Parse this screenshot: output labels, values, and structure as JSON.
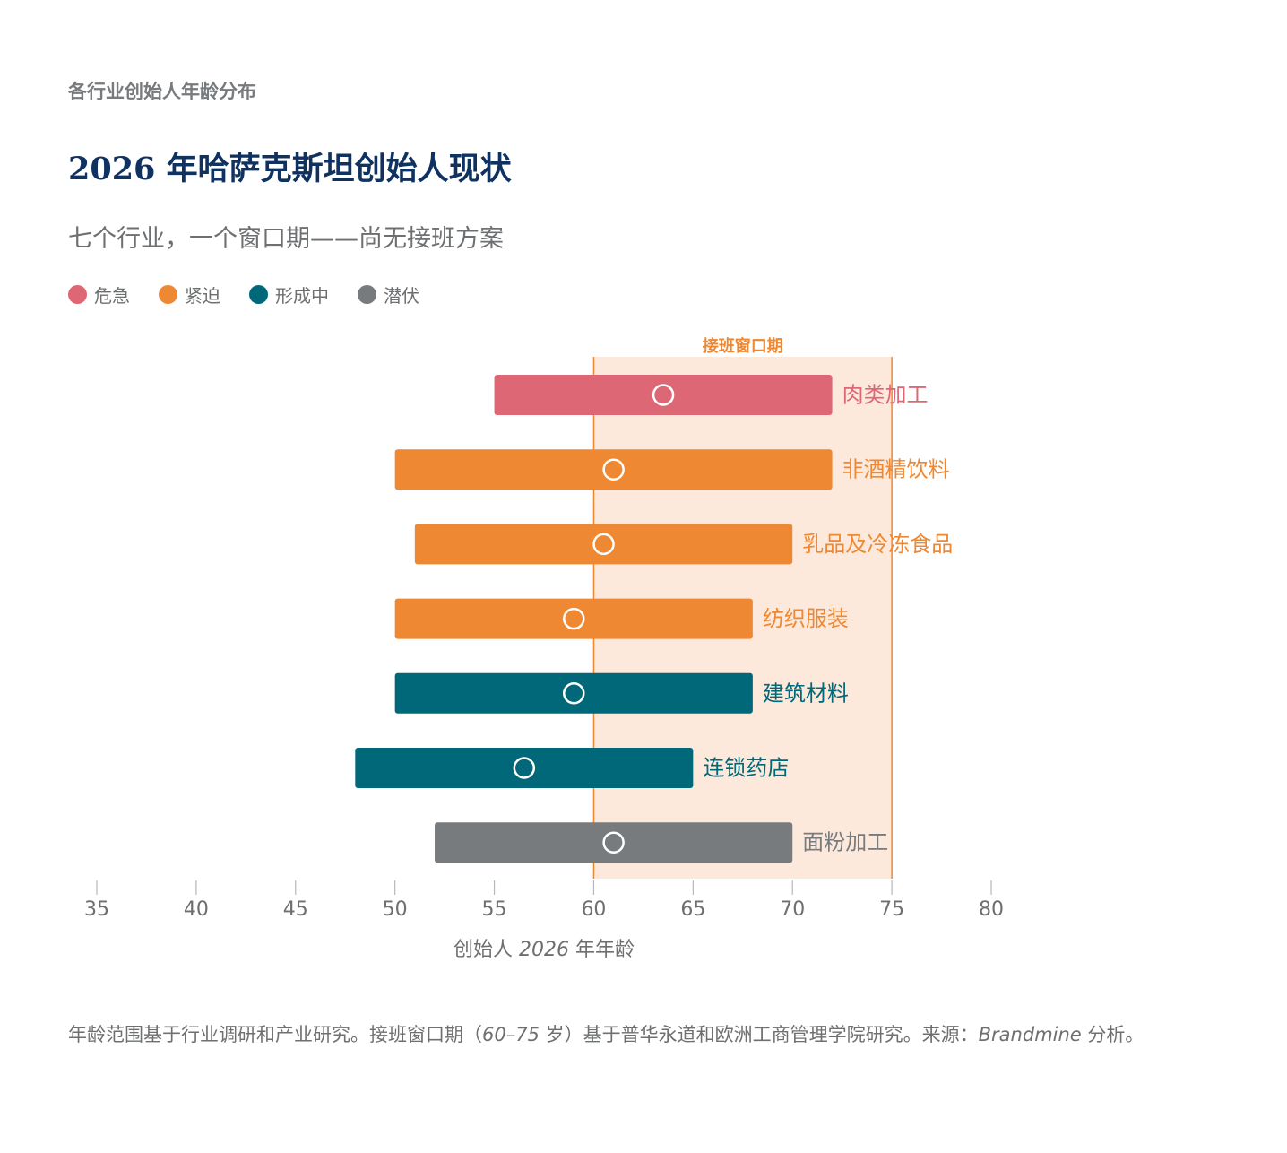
{
  "header": {
    "kicker": "各行业创始人年龄分布",
    "title": "2026 年哈萨克斯坦创始人现状",
    "subtitle": "七个行业，一个窗口期——尚无接班方案"
  },
  "legend": [
    {
      "label": "危急",
      "color": "#de6776"
    },
    {
      "label": "紧迫",
      "color": "#ee8832"
    },
    {
      "label": "形成中",
      "color": "#006878"
    },
    {
      "label": "潜伏",
      "color": "#777b7e"
    }
  ],
  "chart_data": {
    "type": "range-bar",
    "xlabel_prefix": "创始人",
    "xlabel_year": "2026",
    "xlabel_suffix": "年年龄",
    "xlim": [
      35,
      80
    ],
    "xticks": [
      35,
      40,
      45,
      50,
      55,
      60,
      65,
      70,
      75,
      80
    ],
    "window": {
      "label": "接班窗口期",
      "start": 60,
      "end": 75,
      "color": "#ee8832",
      "fill": "#fce9dc"
    },
    "series": [
      {
        "category": "肉类加工",
        "min": 55,
        "max": 72,
        "median": 63.5,
        "status": "危急",
        "color": "#de6776"
      },
      {
        "category": "非酒精饮料",
        "min": 50,
        "max": 72,
        "median": 61,
        "status": "紧迫",
        "color": "#ee8832"
      },
      {
        "category": "乳品及冷冻食品",
        "min": 51,
        "max": 70,
        "median": 60.5,
        "status": "紧迫",
        "color": "#ee8832"
      },
      {
        "category": "纺织服装",
        "min": 50,
        "max": 68,
        "median": 59,
        "status": "紧迫",
        "color": "#ee8832"
      },
      {
        "category": "建筑材料",
        "min": 50,
        "max": 68,
        "median": 59,
        "status": "形成中",
        "color": "#006878"
      },
      {
        "category": "连锁药店",
        "min": 48,
        "max": 65,
        "median": 56.5,
        "status": "形成中",
        "color": "#006878"
      },
      {
        "category": "面粉加工",
        "min": 52,
        "max": 70,
        "median": 61,
        "status": "潜伏",
        "color": "#777b7e"
      }
    ]
  },
  "footnote": {
    "part1": "年龄范围基于行业调研和产业研究。接班窗口期（",
    "range": "60–75",
    "part2": " 岁）基于普华永道和欧洲工商管理学院研究。来源：",
    "source": "Brandmine",
    "part3": " 分析。"
  }
}
